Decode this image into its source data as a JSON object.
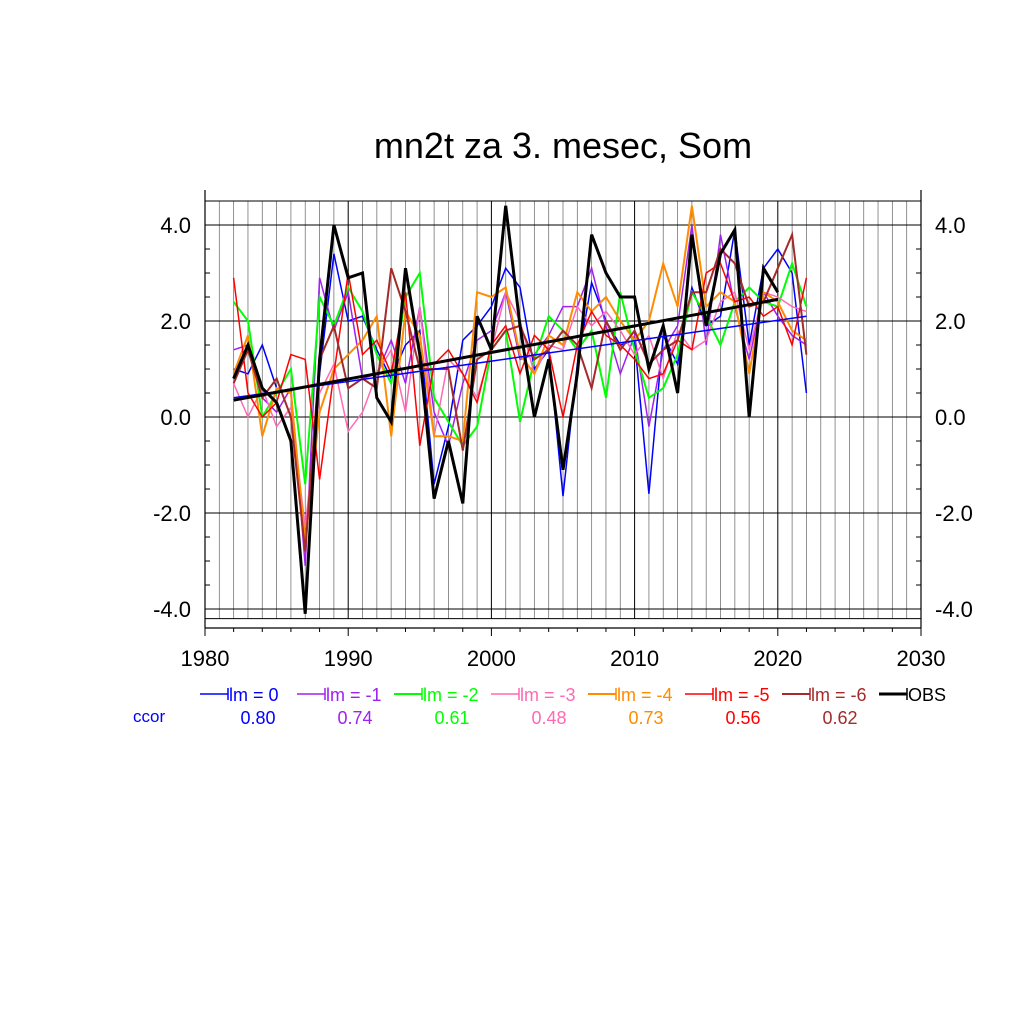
{
  "chart_data": {
    "type": "line",
    "title": "mn2t za 3. mesec, Som",
    "xlim": [
      1980,
      2030
    ],
    "ylim": [
      -4.2,
      4.5
    ],
    "x_ticks": [
      1980,
      1990,
      2000,
      2010,
      2020,
      2030
    ],
    "x_tick_labels": [
      "1980",
      "1990",
      "2000",
      "2010",
      "2020",
      "2030"
    ],
    "y_ticks": [
      -4,
      -2,
      0,
      2,
      4
    ],
    "y_tick_labels": [
      "-4.0",
      "-2.0",
      "0.0",
      "2.0",
      "4.0"
    ],
    "grid": true,
    "legend_position": "bottom",
    "ccor_label": "ccor",
    "x": [
      1982,
      1983,
      1984,
      1985,
      1986,
      1987,
      1988,
      1989,
      1990,
      1991,
      1992,
      1993,
      1994,
      1995,
      1996,
      1997,
      1998,
      1999,
      2000,
      2001,
      2002,
      2003,
      2004,
      2005,
      2006,
      2007,
      2008,
      2009,
      2010,
      2011,
      2012,
      2013,
      2014,
      2015,
      2016,
      2017,
      2018,
      2019,
      2020,
      2021,
      2022
    ],
    "series": [
      {
        "name": "lm = 0",
        "color": "#0000ff",
        "width": 1.5,
        "ccor": "0.80",
        "values": [
          1.0,
          0.9,
          1.5,
          0.6,
          0.5,
          -2.6,
          0.9,
          3.4,
          2.0,
          2.1,
          1.4,
          0.8,
          1.5,
          1.8,
          -1.4,
          -0.2,
          1.6,
          1.9,
          2.3,
          3.1,
          2.7,
          1.0,
          1.4,
          -1.65,
          1.1,
          2.8,
          2.0,
          1.5,
          1.6,
          -1.6,
          1.7,
          1.1,
          2.7,
          1.9,
          2.1,
          3.9,
          1.5,
          3.1,
          3.5,
          3.0,
          0.5
        ]
      },
      {
        "name": "lm = -1",
        "color": "#a020f0",
        "width": 1.5,
        "ccor": "0.74",
        "values": [
          1.4,
          1.5,
          0.4,
          0.1,
          0.6,
          -3.1,
          2.9,
          1.8,
          2.6,
          0.8,
          0.9,
          1.6,
          0.7,
          2.3,
          0.1,
          -0.6,
          0.7,
          1.6,
          1.8,
          2.6,
          1.2,
          1.3,
          1.7,
          2.3,
          2.3,
          3.1,
          1.9,
          0.9,
          1.7,
          -0.2,
          1.4,
          1.9,
          4.0,
          1.5,
          3.8,
          2.3,
          1.2,
          2.6,
          2.1,
          1.7,
          1.5
        ]
      },
      {
        "name": "lm = -2",
        "color": "#00ff00",
        "width": 2.0,
        "ccor": "0.61",
        "values": [
          2.4,
          2.0,
          0.0,
          0.5,
          1.0,
          -1.4,
          2.5,
          1.9,
          2.7,
          2.2,
          1.3,
          0.7,
          2.5,
          3.0,
          0.4,
          -0.1,
          -0.6,
          -0.2,
          1.4,
          1.8,
          -0.1,
          1.2,
          2.1,
          1.8,
          1.4,
          1.8,
          0.4,
          2.6,
          1.4,
          0.4,
          0.6,
          1.3,
          2.6,
          2.1,
          1.5,
          2.4,
          2.7,
          2.4,
          2.3,
          3.2,
          2.3
        ]
      },
      {
        "name": "lm = -3",
        "color": "#ff69b4",
        "width": 1.5,
        "ccor": "0.48",
        "values": [
          0.7,
          0.0,
          0.6,
          -0.2,
          0.2,
          -2.3,
          0.5,
          1.1,
          -0.3,
          0.1,
          0.9,
          1.4,
          0.1,
          2.3,
          -0.4,
          1.2,
          0.9,
          0.4,
          1.4,
          2.6,
          2.0,
          0.9,
          1.5,
          1.4,
          2.3,
          1.9,
          2.2,
          1.8,
          1.3,
          1.7,
          0.8,
          1.8,
          1.4,
          1.6,
          2.4,
          2.6,
          1.4,
          2.6,
          2.5,
          2.3,
          2.2
        ]
      },
      {
        "name": "lm = -4",
        "color": "#ff8c00",
        "width": 2.0,
        "ccor": "0.73",
        "values": [
          0.9,
          1.7,
          -0.4,
          0.6,
          0.5,
          -2.6,
          0.1,
          1.0,
          1.3,
          1.6,
          2.1,
          -0.4,
          2.2,
          1.7,
          -0.4,
          -0.4,
          -0.5,
          2.6,
          2.5,
          2.7,
          1.3,
          0.9,
          1.7,
          1.5,
          2.6,
          2.2,
          2.5,
          2.0,
          1.6,
          2.0,
          3.2,
          2.3,
          4.4,
          2.3,
          2.6,
          2.4,
          0.9,
          2.6,
          2.4,
          1.8,
          1.6
        ]
      },
      {
        "name": "lm = -5",
        "color": "#ff0000",
        "width": 1.5,
        "ccor": "0.56",
        "values": [
          2.9,
          0.5,
          0.0,
          0.3,
          1.3,
          1.2,
          -1.3,
          0.9,
          3.0,
          1.3,
          1.6,
          0.9,
          2.6,
          -0.6,
          1.1,
          1.4,
          0.9,
          0.3,
          1.5,
          1.9,
          0.9,
          1.7,
          1.4,
          0.0,
          1.5,
          2.2,
          1.7,
          1.5,
          1.2,
          0.8,
          0.9,
          1.6,
          1.4,
          3.0,
          3.2,
          2.4,
          2.5,
          2.1,
          2.3,
          1.5,
          2.9
        ]
      },
      {
        "name": "lm = -6",
        "color": "#a52a2a",
        "width": 2.0,
        "ccor": "0.62",
        "values": [
          0.7,
          1.4,
          0.4,
          0.8,
          0.0,
          -2.8,
          1.2,
          1.9,
          0.6,
          0.8,
          0.6,
          3.1,
          2.2,
          1.0,
          1.0,
          1.0,
          -0.7,
          1.2,
          1.4,
          1.8,
          1.9,
          1.2,
          1.4,
          1.8,
          1.5,
          0.6,
          2.0,
          1.4,
          1.8,
          1.1,
          1.4,
          1.6,
          2.6,
          2.6,
          3.5,
          3.2,
          2.3,
          2.4,
          3.1,
          3.8,
          1.3
        ]
      },
      {
        "name": "OBS",
        "color": "#000000",
        "width": 3.0,
        "ccor": "",
        "values": [
          0.8,
          1.5,
          0.6,
          0.3,
          -0.5,
          -4.1,
          1.2,
          4.0,
          2.9,
          3.0,
          0.4,
          -0.1,
          3.1,
          1.3,
          -1.7,
          -0.5,
          -1.8,
          2.1,
          1.4,
          4.4,
          1.9,
          0.0,
          1.2,
          -1.1,
          0.9,
          3.8,
          3.0,
          2.5,
          2.5,
          1.0,
          1.9,
          0.5,
          3.8,
          1.9,
          3.4,
          3.9,
          0.0,
          3.1,
          2.6,
          null,
          null
        ]
      }
    ],
    "trend_lines": [
      {
        "name": "lm = 0 trend",
        "color": "#0000ff",
        "width": 1.5,
        "x": [
          1982,
          2022
        ],
        "y": [
          0.4,
          2.1
        ]
      },
      {
        "name": "OBS trend",
        "color": "#000000",
        "width": 3.0,
        "x": [
          1982,
          2020
        ],
        "y": [
          0.35,
          2.45
        ]
      }
    ]
  }
}
